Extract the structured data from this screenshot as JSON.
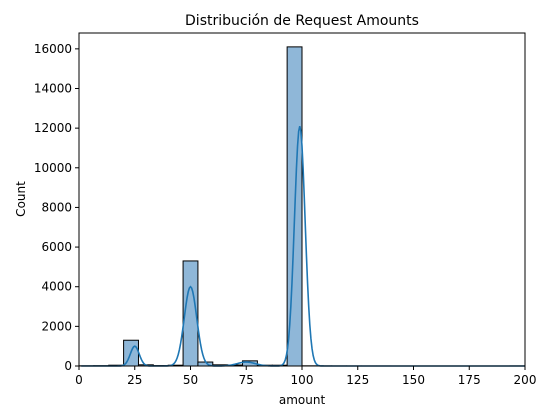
{
  "chart_data": {
    "type": "bar",
    "subtype": "histogram-with-kde",
    "title": "Distribución de Request Amounts",
    "xlabel": "amount",
    "ylabel": "Count",
    "xlim": [
      0,
      200
    ],
    "ylim": [
      0,
      16800
    ],
    "xticks": [
      0,
      25,
      50,
      75,
      100,
      125,
      150,
      175,
      200
    ],
    "yticks": [
      0,
      2000,
      4000,
      6000,
      8000,
      10000,
      12000,
      14000,
      16000
    ],
    "grid": false,
    "legend": "none",
    "bin_width": 6.67,
    "bins": [
      {
        "x0": 0.0,
        "x1": 6.67,
        "count": 10
      },
      {
        "x0": 6.67,
        "x1": 13.33,
        "count": 15
      },
      {
        "x0": 13.33,
        "x1": 20.0,
        "count": 40
      },
      {
        "x0": 20.0,
        "x1": 26.67,
        "count": 1300
      },
      {
        "x0": 26.67,
        "x1": 33.33,
        "count": 60
      },
      {
        "x0": 33.33,
        "x1": 40.0,
        "count": 20
      },
      {
        "x0": 40.0,
        "x1": 46.67,
        "count": 40
      },
      {
        "x0": 46.67,
        "x1": 53.33,
        "count": 5300
      },
      {
        "x0": 53.33,
        "x1": 60.0,
        "count": 200
      },
      {
        "x0": 60.0,
        "x1": 66.67,
        "count": 60
      },
      {
        "x0": 66.67,
        "x1": 73.33,
        "count": 50
      },
      {
        "x0": 73.33,
        "x1": 80.0,
        "count": 260
      },
      {
        "x0": 80.0,
        "x1": 86.67,
        "count": 40
      },
      {
        "x0": 86.67,
        "x1": 93.33,
        "count": 40
      },
      {
        "x0": 93.33,
        "x1": 100.0,
        "count": 16100
      },
      {
        "x0": 100.0,
        "x1": 106.67,
        "count": 10
      },
      {
        "x0": 106.67,
        "x1": 113.33,
        "count": 5
      },
      {
        "x0": 113.33,
        "x1": 120.0,
        "count": 3
      },
      {
        "x0": 120.0,
        "x1": 126.67,
        "count": 2
      },
      {
        "x0": 126.67,
        "x1": 133.33,
        "count": 1
      },
      {
        "x0": 133.33,
        "x1": 140.0,
        "count": 1
      },
      {
        "x0": 140.0,
        "x1": 146.67,
        "count": 0
      },
      {
        "x0": 146.67,
        "x1": 153.33,
        "count": 0
      },
      {
        "x0": 153.33,
        "x1": 160.0,
        "count": 0
      },
      {
        "x0": 160.0,
        "x1": 166.67,
        "count": 0
      },
      {
        "x0": 166.67,
        "x1": 173.33,
        "count": 0
      },
      {
        "x0": 173.33,
        "x1": 180.0,
        "count": 0
      },
      {
        "x0": 180.0,
        "x1": 186.67,
        "count": 0
      },
      {
        "x0": 186.67,
        "x1": 193.33,
        "count": 0
      },
      {
        "x0": 193.33,
        "x1": 200.0,
        "count": 3
      }
    ],
    "kde_peaks": [
      {
        "center": 25,
        "height": 1000
      },
      {
        "center": 50,
        "height": 4000
      },
      {
        "center": 75,
        "height": 200
      },
      {
        "center": 99,
        "height": 12100
      }
    ],
    "colors": {
      "bar_fill": "#8fb7d8",
      "bar_edge": "#000000",
      "kde_line": "#1f77b4"
    }
  }
}
